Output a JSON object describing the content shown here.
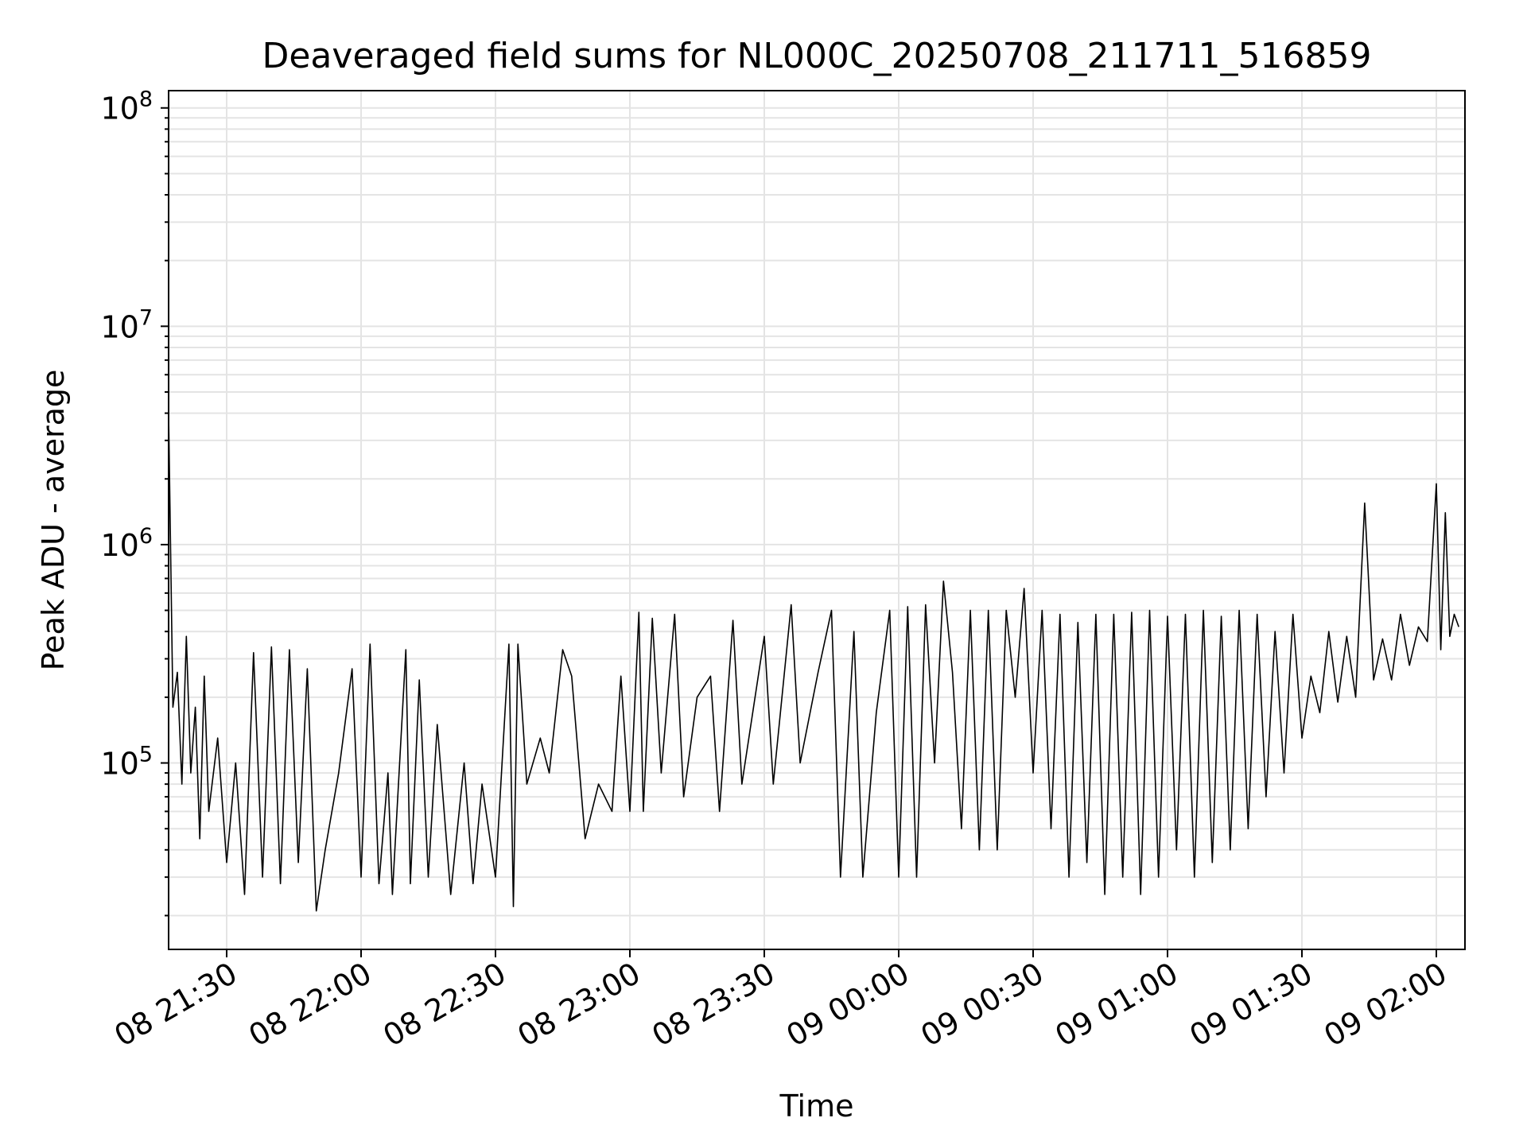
{
  "chart_data": {
    "type": "line",
    "title": "Deaveraged field sums for NL000C_20250708_211711_516859",
    "xlabel": "Time",
    "ylabel": "Peak ADU - average",
    "yscale": "log",
    "ylim": [
      14000,
      120000000
    ],
    "xlim_minutes_label": "08 21:17 to 09 02:05",
    "x_tick_labels": [
      "08 21:30",
      "08 22:00",
      "08 22:30",
      "08 23:00",
      "08 23:30",
      "09 00:00",
      "09 00:30",
      "09 01:00",
      "09 01:30",
      "09 02:00"
    ],
    "y_tick_labels": [
      {
        "base": "10",
        "exp": "5",
        "value": 100000
      },
      {
        "base": "10",
        "exp": "6",
        "value": 1000000
      },
      {
        "base": "10",
        "exp": "7",
        "value": 10000000
      },
      {
        "base": "10",
        "exp": "8",
        "value": 100000000
      }
    ],
    "grid": true,
    "series": [
      {
        "color": "#000000",
        "points": [
          [
            "08 21:17",
            4000000
          ],
          [
            "08 21:18",
            180000
          ],
          [
            "08 21:19",
            260000
          ],
          [
            "08 21:20",
            80000
          ],
          [
            "08 21:21",
            380000
          ],
          [
            "08 21:22",
            90000
          ],
          [
            "08 21:23",
            180000
          ],
          [
            "08 21:24",
            45000
          ],
          [
            "08 21:25",
            250000
          ],
          [
            "08 21:26",
            60000
          ],
          [
            "08 21:28",
            130000
          ],
          [
            "08 21:30",
            35000
          ],
          [
            "08 21:32",
            100000
          ],
          [
            "08 21:34",
            25000
          ],
          [
            "08 21:36",
            320000
          ],
          [
            "08 21:38",
            30000
          ],
          [
            "08 21:40",
            340000
          ],
          [
            "08 21:42",
            28000
          ],
          [
            "08 21:44",
            330000
          ],
          [
            "08 21:46",
            35000
          ],
          [
            "08 21:48",
            270000
          ],
          [
            "08 21:50",
            21000
          ],
          [
            "08 21:52",
            40000
          ],
          [
            "08 21:55",
            90000
          ],
          [
            "08 21:58",
            270000
          ],
          [
            "08 22:00",
            30000
          ],
          [
            "08 22:02",
            350000
          ],
          [
            "08 22:04",
            28000
          ],
          [
            "08 22:06",
            90000
          ],
          [
            "08 22:07",
            25000
          ],
          [
            "08 22:10",
            330000
          ],
          [
            "08 22:11",
            28000
          ],
          [
            "08 22:13",
            240000
          ],
          [
            "08 22:15",
            30000
          ],
          [
            "08 22:17",
            150000
          ],
          [
            "08 22:20",
            25000
          ],
          [
            "08 22:23",
            100000
          ],
          [
            "08 22:25",
            28000
          ],
          [
            "08 22:27",
            80000
          ],
          [
            "08 22:30",
            30000
          ],
          [
            "08 22:33",
            350000
          ],
          [
            "08 22:34",
            22000
          ],
          [
            "08 22:35",
            350000
          ],
          [
            "08 22:37",
            80000
          ],
          [
            "08 22:40",
            130000
          ],
          [
            "08 22:42",
            90000
          ],
          [
            "08 22:45",
            330000
          ],
          [
            "08 22:47",
            250000
          ],
          [
            "08 22:50",
            45000
          ],
          [
            "08 22:53",
            80000
          ],
          [
            "08 22:56",
            60000
          ],
          [
            "08 22:58",
            250000
          ],
          [
            "08 23:00",
            60000
          ],
          [
            "08 23:02",
            490000
          ],
          [
            "08 23:03",
            60000
          ],
          [
            "08 23:05",
            460000
          ],
          [
            "08 23:07",
            90000
          ],
          [
            "08 23:10",
            480000
          ],
          [
            "08 23:12",
            70000
          ],
          [
            "08 23:15",
            200000
          ],
          [
            "08 23:18",
            250000
          ],
          [
            "08 23:20",
            60000
          ],
          [
            "08 23:23",
            450000
          ],
          [
            "08 23:25",
            80000
          ],
          [
            "08 23:30",
            380000
          ],
          [
            "08 23:32",
            80000
          ],
          [
            "08 23:36",
            530000
          ],
          [
            "08 23:38",
            100000
          ],
          [
            "08 23:42",
            260000
          ],
          [
            "08 23:45",
            500000
          ],
          [
            "08 23:47",
            30000
          ],
          [
            "08 23:50",
            400000
          ],
          [
            "08 23:52",
            30000
          ],
          [
            "08 23:55",
            170000
          ],
          [
            "08 23:58",
            500000
          ],
          [
            "09 00:00",
            30000
          ],
          [
            "09 00:02",
            520000
          ],
          [
            "09 00:04",
            30000
          ],
          [
            "09 00:06",
            530000
          ],
          [
            "09 00:08",
            100000
          ],
          [
            "09 00:10",
            680000
          ],
          [
            "09 00:12",
            260000
          ],
          [
            "09 00:14",
            50000
          ],
          [
            "09 00:16",
            500000
          ],
          [
            "09 00:18",
            40000
          ],
          [
            "09 00:20",
            500000
          ],
          [
            "09 00:22",
            40000
          ],
          [
            "09 00:24",
            500000
          ],
          [
            "09 00:26",
            200000
          ],
          [
            "09 00:28",
            630000
          ],
          [
            "09 00:30",
            90000
          ],
          [
            "09 00:32",
            500000
          ],
          [
            "09 00:34",
            50000
          ],
          [
            "09 00:36",
            480000
          ],
          [
            "09 00:38",
            30000
          ],
          [
            "09 00:40",
            440000
          ],
          [
            "09 00:42",
            35000
          ],
          [
            "09 00:44",
            480000
          ],
          [
            "09 00:46",
            25000
          ],
          [
            "09 00:48",
            480000
          ],
          [
            "09 00:50",
            30000
          ],
          [
            "09 00:52",
            490000
          ],
          [
            "09 00:54",
            25000
          ],
          [
            "09 00:56",
            500000
          ],
          [
            "09 00:58",
            30000
          ],
          [
            "09 01:00",
            470000
          ],
          [
            "09 01:02",
            40000
          ],
          [
            "09 01:04",
            480000
          ],
          [
            "09 01:06",
            30000
          ],
          [
            "09 01:08",
            500000
          ],
          [
            "09 01:10",
            35000
          ],
          [
            "09 01:12",
            470000
          ],
          [
            "09 01:14",
            40000
          ],
          [
            "09 01:16",
            500000
          ],
          [
            "09 01:18",
            50000
          ],
          [
            "09 01:20",
            480000
          ],
          [
            "09 01:22",
            70000
          ],
          [
            "09 01:24",
            400000
          ],
          [
            "09 01:26",
            90000
          ],
          [
            "09 01:28",
            480000
          ],
          [
            "09 01:30",
            130000
          ],
          [
            "09 01:32",
            250000
          ],
          [
            "09 01:34",
            170000
          ],
          [
            "09 01:36",
            400000
          ],
          [
            "09 01:38",
            190000
          ],
          [
            "09 01:40",
            380000
          ],
          [
            "09 01:42",
            200000
          ],
          [
            "09 01:44",
            1550000
          ],
          [
            "09 01:46",
            240000
          ],
          [
            "09 01:48",
            370000
          ],
          [
            "09 01:50",
            240000
          ],
          [
            "09 01:52",
            480000
          ],
          [
            "09 01:54",
            280000
          ],
          [
            "09 01:56",
            420000
          ],
          [
            "09 01:58",
            360000
          ],
          [
            "09 02:00",
            1900000
          ],
          [
            "09 02:01",
            330000
          ],
          [
            "09 02:02",
            1400000
          ],
          [
            "09 02:03",
            380000
          ],
          [
            "09 02:04",
            480000
          ],
          [
            "09 02:05",
            420000
          ]
        ]
      }
    ]
  }
}
